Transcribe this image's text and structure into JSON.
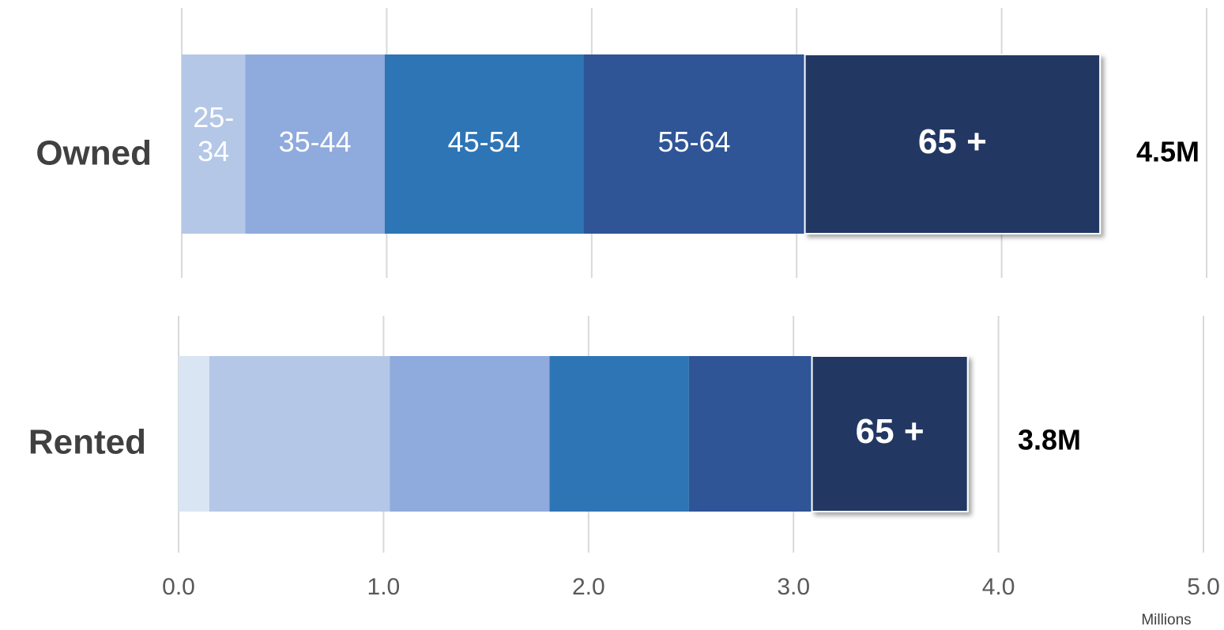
{
  "chart_data": [
    {
      "type": "bar",
      "orientation": "horizontal",
      "stacked": true,
      "categories": [
        "Owned"
      ],
      "series": [
        {
          "name": "25-34",
          "values": [
            0.31
          ],
          "color": "#b4c7e7"
        },
        {
          "name": "35-44",
          "values": [
            0.68
          ],
          "color": "#8faadc"
        },
        {
          "name": "45-54",
          "values": [
            0.97
          ],
          "color": "#2e75b6"
        },
        {
          "name": "55-64",
          "values": [
            1.08
          ],
          "color": "#2f5597"
        },
        {
          "name": "65 +",
          "values": [
            1.44
          ],
          "color": "#203864"
        }
      ],
      "total_label": "4.5M",
      "xlim": [
        0,
        5
      ],
      "grid": true
    },
    {
      "type": "bar",
      "orientation": "horizontal",
      "stacked": true,
      "categories": [
        "Rented"
      ],
      "series": [
        {
          "name": "",
          "values": [
            0.15
          ],
          "color": "#dae5f4"
        },
        {
          "name": "",
          "values": [
            0.88
          ],
          "color": "#b4c7e7"
        },
        {
          "name": "",
          "values": [
            0.78
          ],
          "color": "#8faadc"
        },
        {
          "name": "",
          "values": [
            0.68
          ],
          "color": "#2e75b6"
        },
        {
          "name": "",
          "values": [
            0.6
          ],
          "color": "#2f5597"
        },
        {
          "name": "65 +",
          "values": [
            0.76
          ],
          "color": "#203864"
        }
      ],
      "total_label": "3.8M",
      "xlim": [
        0,
        5
      ],
      "grid": true,
      "xticks": [
        "0.0",
        "1.0",
        "2.0",
        "3.0",
        "4.0",
        "5.0"
      ],
      "xlabel": "Millions"
    }
  ]
}
